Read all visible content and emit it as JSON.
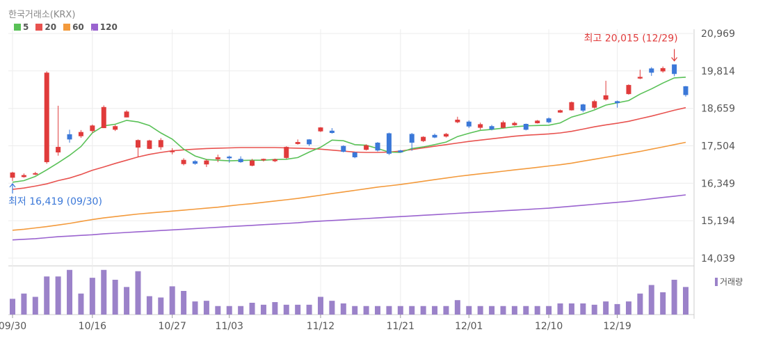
{
  "chart_title": "한국거래소(KRX)",
  "legend": [
    {
      "label": "5",
      "color": "#59c157"
    },
    {
      "label": "20",
      "color": "#e8524f"
    },
    {
      "label": "60",
      "color": "#f39a3c"
    },
    {
      "label": "120",
      "color": "#9a63cf"
    }
  ],
  "volume_legend": {
    "label": "거래량",
    "color": "#9b82c9"
  },
  "colors": {
    "up": "#e03b3b",
    "down": "#3b78d8",
    "volume": "#9b82c9"
  },
  "chart_data": {
    "type": "candlestick",
    "ylim": [
      13800,
      21100
    ],
    "yticks": [
      "20,969",
      "19,814",
      "18,659",
      "17,504",
      "16,349",
      "15,194",
      "14,039"
    ],
    "ytick_values": [
      20969,
      19814,
      18659,
      17504,
      16349,
      15194,
      14039
    ],
    "xtick_labels": [
      {
        "label": "09/30",
        "index": 0
      },
      {
        "label": "10/16",
        "index": 7
      },
      {
        "label": "10/27",
        "index": 14
      },
      {
        "label": "11/03",
        "index": 19
      },
      {
        "label": "11/12",
        "index": 27
      },
      {
        "label": "11/21",
        "index": 34
      },
      {
        "label": "12/01",
        "index": 40
      },
      {
        "label": "12/10",
        "index": 47
      },
      {
        "label": "12/19",
        "index": 53
      }
    ],
    "candles": [
      [
        16520,
        16680,
        16700,
        16419
      ],
      [
        16540,
        16600,
        16650,
        16520
      ],
      [
        16620,
        16660,
        16700,
        16600
      ],
      [
        17000,
        19760,
        19800,
        16950
      ],
      [
        17300,
        17470,
        18740,
        17200
      ],
      [
        17860,
        17700,
        18000,
        17600
      ],
      [
        17800,
        17930,
        17990,
        17750
      ],
      [
        17960,
        18130,
        18160,
        17900
      ],
      [
        18050,
        18700,
        18750,
        18050
      ],
      [
        18000,
        18110,
        18150,
        17960
      ],
      [
        18380,
        18560,
        18600,
        18380
      ],
      [
        17450,
        17680,
        17700,
        17150
      ],
      [
        17410,
        17670,
        17690,
        17400
      ],
      [
        17460,
        17680,
        17740,
        17380
      ],
      [
        17320,
        17350,
        17430,
        17240
      ],
      [
        16940,
        17070,
        17120,
        16900
      ],
      [
        17030,
        16950,
        17060,
        16920
      ],
      [
        16930,
        17050,
        17090,
        16850
      ],
      [
        17090,
        17150,
        17230,
        17000
      ],
      [
        17170,
        17120,
        17200,
        16980
      ],
      [
        17100,
        17000,
        17180,
        16980
      ],
      [
        16890,
        17050,
        17100,
        16870
      ],
      [
        17060,
        17100,
        17110,
        17020
      ],
      [
        17030,
        17090,
        17110,
        17000
      ],
      [
        17130,
        17470,
        17490,
        17100
      ],
      [
        17560,
        17620,
        17700,
        17540
      ],
      [
        17700,
        17550,
        17710,
        17500
      ],
      [
        17950,
        18070,
        18080,
        17930
      ],
      [
        17970,
        17900,
        18050,
        17880
      ],
      [
        17500,
        17320,
        17520,
        17300
      ],
      [
        17300,
        17150,
        17320,
        17120
      ],
      [
        17380,
        17520,
        17550,
        17360
      ],
      [
        17600,
        17360,
        17620,
        17330
      ],
      [
        17890,
        17260,
        17910,
        17220
      ],
      [
        17360,
        17300,
        17380,
        17300
      ],
      [
        17870,
        17600,
        17900,
        17350
      ],
      [
        17650,
        17780,
        17800,
        17620
      ],
      [
        17840,
        17760,
        17880,
        17740
      ],
      [
        17790,
        17870,
        17900,
        17760
      ],
      [
        18230,
        18310,
        18400,
        18200
      ],
      [
        18250,
        18100,
        18290,
        18050
      ],
      [
        18060,
        18170,
        18220,
        18000
      ],
      [
        18110,
        18010,
        18150,
        17980
      ],
      [
        18060,
        18230,
        18280,
        18040
      ],
      [
        18140,
        18210,
        18250,
        18120
      ],
      [
        18180,
        18000,
        18190,
        17980
      ],
      [
        18200,
        18280,
        18300,
        18190
      ],
      [
        18350,
        18230,
        18380,
        18200
      ],
      [
        18530,
        18600,
        18620,
        18520
      ],
      [
        18600,
        18850,
        18870,
        18590
      ],
      [
        18780,
        18590,
        18800,
        18540
      ],
      [
        18680,
        18880,
        18920,
        18640
      ],
      [
        18930,
        19060,
        19510,
        18900
      ],
      [
        18880,
        18820,
        18900,
        18680
      ],
      [
        19100,
        19380,
        19400,
        19080
      ],
      [
        19580,
        19630,
        19850,
        19560
      ],
      [
        19890,
        19760,
        19930,
        19660
      ],
      [
        19800,
        19900,
        19950,
        19760
      ],
      [
        20015,
        19720,
        20015,
        19650
      ],
      [
        19340,
        19070,
        19350,
        19020
      ]
    ],
    "ma5": [
      16380,
      16430,
      16560,
      16760,
      16980,
      17210,
      17480,
      17900,
      18120,
      18170,
      18290,
      18240,
      18130,
      17900,
      17710,
      17400,
      17190,
      17080,
      17060,
      17040,
      17050,
      17060,
      17060,
      17080,
      17090,
      17140,
      17310,
      17460,
      17680,
      17660,
      17540,
      17520,
      17420,
      17310,
      17300,
      17420,
      17470,
      17540,
      17620,
      17790,
      17890,
      17980,
      18010,
      18050,
      18090,
      18120,
      18130,
      18140,
      18210,
      18390,
      18490,
      18610,
      18760,
      18830,
      18900,
      19100,
      19260,
      19440,
      19600,
      19620
    ],
    "ma20": [
      16160,
      16200,
      16260,
      16330,
      16430,
      16510,
      16620,
      16750,
      16850,
      16960,
      17060,
      17160,
      17240,
      17300,
      17350,
      17380,
      17400,
      17420,
      17430,
      17440,
      17450,
      17450,
      17450,
      17450,
      17440,
      17430,
      17420,
      17400,
      17370,
      17340,
      17310,
      17300,
      17300,
      17310,
      17340,
      17390,
      17440,
      17490,
      17540,
      17590,
      17640,
      17680,
      17720,
      17760,
      17800,
      17830,
      17850,
      17870,
      17900,
      17950,
      18020,
      18090,
      18150,
      18200,
      18260,
      18340,
      18420,
      18510,
      18600,
      18680
    ],
    "ma60": [
      14900,
      14930,
      14970,
      15010,
      15060,
      15110,
      15170,
      15230,
      15280,
      15320,
      15360,
      15400,
      15430,
      15460,
      15490,
      15520,
      15550,
      15580,
      15610,
      15650,
      15690,
      15720,
      15760,
      15800,
      15840,
      15880,
      15930,
      15980,
      16030,
      16080,
      16130,
      16180,
      16230,
      16270,
      16310,
      16360,
      16410,
      16460,
      16510,
      16560,
      16600,
      16640,
      16680,
      16720,
      16760,
      16800,
      16840,
      16880,
      16920,
      16970,
      17030,
      17090,
      17150,
      17210,
      17270,
      17330,
      17400,
      17470,
      17540,
      17610
    ],
    "ma120": [
      14600,
      14620,
      14640,
      14670,
      14700,
      14720,
      14740,
      14760,
      14790,
      14810,
      14830,
      14850,
      14870,
      14890,
      14910,
      14930,
      14950,
      14970,
      14990,
      15010,
      15030,
      15050,
      15070,
      15090,
      15110,
      15130,
      15160,
      15180,
      15200,
      15220,
      15240,
      15260,
      15280,
      15300,
      15320,
      15340,
      15360,
      15380,
      15400,
      15420,
      15440,
      15460,
      15480,
      15500,
      15520,
      15540,
      15560,
      15580,
      15610,
      15640,
      15670,
      15700,
      15730,
      15760,
      15790,
      15830,
      15870,
      15910,
      15950,
      15990
    ],
    "volume": [
      24,
      32,
      27,
      58,
      58,
      68,
      32,
      56,
      68,
      53,
      42,
      66,
      28,
      26,
      43,
      36,
      20,
      21,
      13,
      13,
      13,
      18,
      15,
      19,
      15,
      15,
      15,
      27,
      21,
      17,
      13,
      13,
      13,
      13,
      13,
      13,
      13,
      13,
      13,
      22,
      13,
      13,
      13,
      13,
      13,
      13,
      13,
      13,
      17,
      17,
      17,
      15,
      20,
      16,
      20,
      32,
      45,
      34,
      53,
      42
    ],
    "volume_max": 72,
    "annotations": {
      "high": {
        "text": "최고 20,015 (12/29)",
        "index": 58,
        "value": 20015
      },
      "low": {
        "text": "최저 16,419 (09/30)",
        "index": 0,
        "value": 16419
      }
    }
  }
}
